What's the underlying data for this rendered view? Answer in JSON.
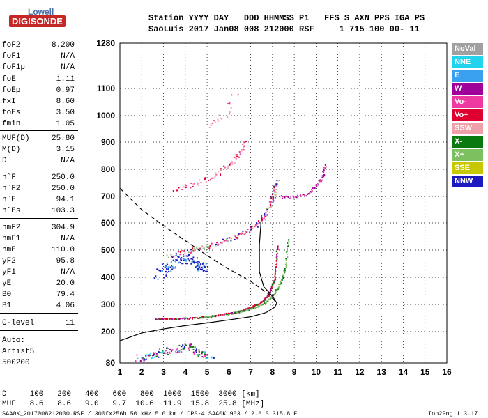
{
  "logo": {
    "top": "Lowell",
    "main": "DIGISONDE"
  },
  "header": {
    "line1": "Station YYYY DAY   DDD HHMMSS P1   FFS S AXN PPS IGA PS",
    "line2": "SaoLuis 2017 Jan08 008 212000 RSF     1 715 100 00- 11"
  },
  "params": [
    {
      "k": "foF2",
      "v": "8.200"
    },
    {
      "k": "foF1",
      "v": "N/A"
    },
    {
      "k": "foF1p",
      "v": "N/A"
    },
    {
      "k": "foE",
      "v": "1.11"
    },
    {
      "k": "foEp",
      "v": "0.97"
    },
    {
      "k": "fxI",
      "v": "8.60"
    },
    {
      "k": "foEs",
      "v": "3.50"
    },
    {
      "k": "fmin",
      "v": "1.05"
    },
    {
      "k": "MUF(D)",
      "v": "25.80"
    },
    {
      "k": "M(D)",
      "v": "3.15"
    },
    {
      "k": "D",
      "v": "N/A"
    },
    {
      "k": "h`F",
      "v": "250.0"
    },
    {
      "k": "h`F2",
      "v": "250.0"
    },
    {
      "k": "h`E",
      "v": "94.1"
    },
    {
      "k": "h`Es",
      "v": "103.3"
    },
    {
      "k": "hmF2",
      "v": "304.9"
    },
    {
      "k": "hmF1",
      "v": "N/A"
    },
    {
      "k": "hmE",
      "v": "110.0"
    },
    {
      "k": "yF2",
      "v": "95.8"
    },
    {
      "k": "yF1",
      "v": "N/A"
    },
    {
      "k": "yE",
      "v": "20.0"
    },
    {
      "k": "B0",
      "v": "79.4"
    },
    {
      "k": "B1",
      "v": "4.06"
    },
    {
      "k": "C-level",
      "v": "11"
    }
  ],
  "auto": {
    "l1": "Auto:",
    "l2": "Artist5",
    "l3": "500200"
  },
  "legend": [
    {
      "label": "NoVal",
      "color": "#a0a0a0"
    },
    {
      "label": "NNE",
      "color": "#22d3ee"
    },
    {
      "label": "E",
      "color": "#3aa0f0"
    },
    {
      "label": "W",
      "color": "#a0009a"
    },
    {
      "label": "Vo-",
      "color": "#ee3aa0"
    },
    {
      "label": "Vo+",
      "color": "#e00030"
    },
    {
      "label": "SSW",
      "color": "#f0a0a8"
    },
    {
      "label": "X-",
      "color": "#0a7a10"
    },
    {
      "label": "X+",
      "color": "#7cc060"
    },
    {
      "label": "SSE",
      "color": "#c8c800"
    },
    {
      "label": "NNW",
      "color": "#1a1ac0"
    }
  ],
  "footer": {
    "d_row": "D     100   200   400   600   800  1000  1500  3000 [km]",
    "muf_row": "MUF   8.6   8.6   9.0   9.7  10.6  11.9  15.8  25.8 [MHz]",
    "info": "SAA0K_2017008212000.RSF / 300fx256h 50 kHz 5.0 km / DPS-4 SAA0K 903 / 2.6 S 315.8 E",
    "version": "Ion2Png 1.3.17"
  },
  "chart_data": {
    "type": "scatter",
    "xlim": [
      1,
      16
    ],
    "ylim": [
      80,
      1280
    ],
    "xticks": [
      "1",
      "2",
      "3",
      "4",
      "5",
      "6",
      "7",
      "8",
      "9",
      "10",
      "11",
      "12",
      "13",
      "14",
      "15",
      "16"
    ],
    "yticks": [
      "80",
      "200",
      "300",
      "400",
      "500",
      "600",
      "700",
      "800",
      "900",
      "1000",
      "1100",
      "1280"
    ],
    "y_tick_values": [
      80,
      200,
      300,
      400,
      500,
      600,
      700,
      800,
      900,
      1000,
      1100,
      1280
    ],
    "grid": true,
    "xlabel": "",
    "ylabel": "",
    "trace_o_F2": [
      [
        2.6,
        248
      ],
      [
        3.5,
        249
      ],
      [
        4.5,
        252
      ],
      [
        5.5,
        262
      ],
      [
        6.3,
        273
      ],
      [
        6.9,
        288
      ],
      [
        7.4,
        305
      ],
      [
        7.8,
        335
      ],
      [
        8.1,
        400
      ],
      [
        8.2,
        520
      ]
    ],
    "trace_x_F2": [
      [
        4.5,
        252
      ],
      [
        5.6,
        262
      ],
      [
        6.5,
        275
      ],
      [
        7.2,
        290
      ],
      [
        7.7,
        310
      ],
      [
        8.1,
        345
      ],
      [
        8.4,
        390
      ],
      [
        8.6,
        450
      ],
      [
        8.7,
        550
      ]
    ],
    "trace_2F": [
      [
        3.2,
        480
      ],
      [
        4.2,
        500
      ],
      [
        5.2,
        520
      ],
      [
        6.0,
        540
      ],
      [
        6.8,
        570
      ],
      [
        7.4,
        605
      ],
      [
        7.8,
        650
      ],
      [
        8.0,
        700
      ],
      [
        8.2,
        760
      ]
    ],
    "trace_3F": [
      [
        3.5,
        725
      ],
      [
        4.5,
        750
      ],
      [
        5.5,
        785
      ],
      [
        6.3,
        840
      ],
      [
        6.8,
        900
      ]
    ],
    "trace_W": [
      [
        8.3,
        700
      ],
      [
        9.0,
        698
      ],
      [
        9.6,
        710
      ],
      [
        10.0,
        740
      ],
      [
        10.3,
        780
      ],
      [
        10.4,
        820
      ]
    ],
    "trace_4F": [
      [
        5.0,
        960
      ],
      [
        5.8,
        1010
      ],
      [
        6.3,
        1080
      ]
    ],
    "profile_solid": [
      [
        1.0,
        165
      ],
      [
        2.0,
        195
      ],
      [
        3.0,
        210
      ],
      [
        4.0,
        222
      ],
      [
        5.0,
        232
      ],
      [
        6.0,
        243
      ],
      [
        7.0,
        255
      ],
      [
        7.7,
        270
      ],
      [
        8.1,
        290
      ],
      [
        8.2,
        305
      ],
      [
        8.0,
        330
      ],
      [
        7.6,
        365
      ],
      [
        7.4,
        420
      ],
      [
        7.4,
        520
      ],
      [
        7.5,
        630
      ]
    ],
    "profile_dashed": [
      [
        1.0,
        730
      ],
      [
        2.0,
        650
      ],
      [
        3.0,
        590
      ],
      [
        4.0,
        535
      ],
      [
        5.0,
        480
      ],
      [
        6.0,
        430
      ],
      [
        7.0,
        385
      ],
      [
        7.8,
        340
      ],
      [
        8.2,
        305
      ]
    ],
    "es_points": [
      [
        1.8,
        100
      ],
      [
        2.5,
        110
      ],
      [
        3.0,
        125
      ],
      [
        3.6,
        135
      ],
      [
        4.2,
        145
      ],
      [
        4.6,
        120
      ],
      [
        5.2,
        108
      ]
    ],
    "mid_cluster": [
      [
        2.7,
        410
      ],
      [
        3.2,
        440
      ],
      [
        3.7,
        470
      ],
      [
        4.2,
        470
      ],
      [
        4.6,
        450
      ],
      [
        4.9,
        430
      ]
    ]
  }
}
